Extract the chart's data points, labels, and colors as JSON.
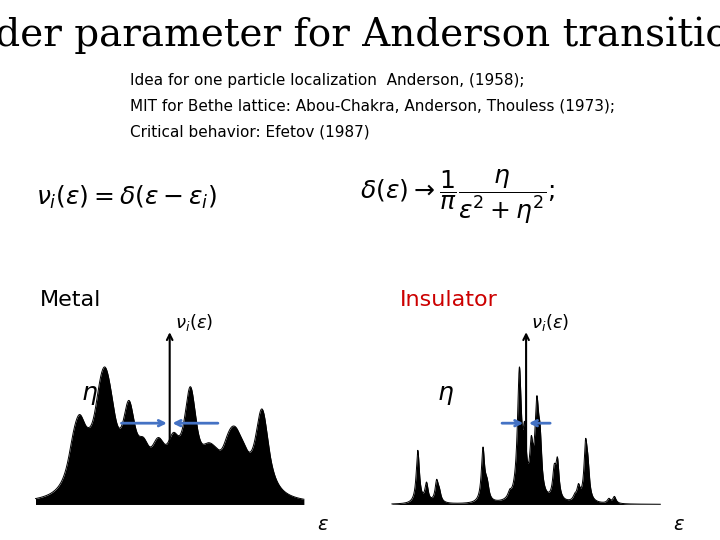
{
  "title": "Order parameter for Anderson transition?",
  "title_fontsize": 28,
  "title_font": "serif",
  "subtitle_lines": [
    "Idea for one particle localization  Anderson, (1958);",
    "MIT for Bethe lattice: Abou-Chakra, Anderson, Thouless (1973);",
    "Critical behavior: Efetov (1987)"
  ],
  "subtitle_fontsize": 11,
  "formula_fontsize": 16,
  "metal_label": "Metal",
  "insulator_label": "Insulator",
  "insulator_color": "#cc0000",
  "label_fontsize": 16,
  "nu_fontsize": 13,
  "eta_fontsize": 18,
  "epsilon_fontsize": 14,
  "arrow_color": "#4472C4",
  "background_color": "#ffffff",
  "metal_eta": 0.08,
  "insulator_eta": 0.03
}
